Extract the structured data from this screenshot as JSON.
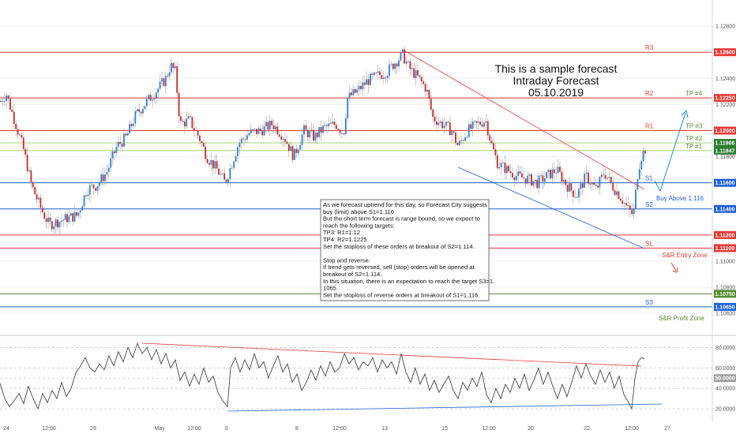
{
  "chart_data": {
    "type": "candlestick",
    "title_lines": [
      "This is a sample forecast",
      "Intraday Forecast",
      "05.10.2019"
    ],
    "price_axis": {
      "ylim": [
        1.1045,
        1.13
      ],
      "ticks": [
        "1.12800",
        "1.12600",
        "1.12400",
        "1.12200",
        "1.12000",
        "1.11800",
        "1.11600",
        "1.11400",
        "1.11200",
        "1.11000",
        "1.10800",
        "1.10600"
      ]
    },
    "levels": [
      {
        "label": "R3",
        "price": 1.126,
        "tag": "1.12600",
        "color": "#e53935",
        "tag_color": "#e53935"
      },
      {
        "label": "R2",
        "price": 1.1225,
        "tag": "1.12250",
        "color": "#e53935",
        "tag_color": "#e53935"
      },
      {
        "label": "R1",
        "price": 1.12,
        "tag": "1.12000",
        "color": "#e53935",
        "tag_color": "#e53935"
      },
      {
        "label": "TP #3",
        "price": 1.12,
        "tag": "",
        "color": "#558b2f",
        "tag_color": "#558b2f"
      },
      {
        "label": "TP #2",
        "price": 1.11906,
        "tag": "1.11906",
        "color": "#9ccc65",
        "tag_color": "#2e7d32"
      },
      {
        "label": "TP #1",
        "price": 1.11847,
        "tag": "1.11847",
        "color": "#9ccc65",
        "tag_color": "#2e7d32"
      },
      {
        "label": "TP #4",
        "price": 1.1225,
        "tag": "",
        "color": "#558b2f",
        "tag_color": "#558b2f"
      },
      {
        "label": "S1",
        "price": 1.116,
        "tag": "1.11600",
        "color": "#1e5fd8",
        "tag_color": "#1e5fd8"
      },
      {
        "label": "S2",
        "price": 1.114,
        "tag": "1.11400",
        "color": "#1e5fd8",
        "tag_color": "#1e5fd8"
      },
      {
        "label": "",
        "price": 1.112,
        "tag": "1.11200",
        "color": "#e53935",
        "tag_color": "#e53935"
      },
      {
        "label": "SL",
        "price": 1.111,
        "tag": "1.11100",
        "color": "#e53935",
        "tag_color": "#e53935"
      },
      {
        "label": "",
        "price": 1.1075,
        "tag": "1.10750",
        "color": "#558b2f",
        "tag_color": "#558b2f"
      },
      {
        "label": "S3",
        "price": 1.1065,
        "tag": "1.10650",
        "color": "#1e5fd8",
        "tag_color": "#1e5fd8"
      }
    ],
    "annotations": {
      "buy_above": "Buy Above 1.116",
      "entry_zone": "S&R Entry Zone",
      "profit_zone": "S&R Profit Zone"
    },
    "note_lines": [
      "As we forecast uptrend for this day, so Forecast City suggests",
      "buy (limit) above S1=1.116.",
      "But the short term forecast is range bound, so we expect to",
      "reach the following targets:",
      "TP3: R1=1.12",
      "TP4: R2=1.1225",
      "Set the stoploss of these orders at breakout of S2=1.114.",
      "",
      "Stop and reverse:",
      "If trend gets reversed, sell (stop) orders will be opened at",
      "breakout of S2=1.114.",
      "In this situation, there is an expectation to reach the target S3=1.",
      "1065.",
      "Set the stoploss of reverse orders at breakout of S1=1.116."
    ],
    "time_axis": [
      "24",
      "12:00",
      "29",
      "May",
      "12:00",
      "6",
      "8",
      "12:00",
      "13",
      "15",
      "12:00",
      "20",
      "22",
      "12:00",
      "27"
    ],
    "price_anchors": [
      [
        0,
        1.1222
      ],
      [
        8,
        1.1228
      ],
      [
        20,
        1.1205
      ],
      [
        30,
        1.1185
      ],
      [
        40,
        1.1158
      ],
      [
        52,
        1.114
      ],
      [
        62,
        1.1128
      ],
      [
        72,
        1.113
      ],
      [
        85,
        1.1133
      ],
      [
        98,
        1.1135
      ],
      [
        110,
        1.1155
      ],
      [
        122,
        1.1158
      ],
      [
        135,
        1.1168
      ],
      [
        148,
        1.1188
      ],
      [
        160,
        1.1195
      ],
      [
        172,
        1.1212
      ],
      [
        180,
        1.1218
      ],
      [
        190,
        1.1225
      ],
      [
        200,
        1.1232
      ],
      [
        210,
        1.124
      ],
      [
        216,
        1.125
      ],
      [
        222,
        1.1245
      ],
      [
        228,
        1.1205
      ],
      [
        240,
        1.1208
      ],
      [
        252,
        1.1195
      ],
      [
        262,
        1.118
      ],
      [
        275,
        1.117
      ],
      [
        285,
        1.116
      ],
      [
        292,
        1.1172
      ],
      [
        302,
        1.119
      ],
      [
        315,
        1.1198
      ],
      [
        330,
        1.12
      ],
      [
        345,
        1.1205
      ],
      [
        360,
        1.1195
      ],
      [
        372,
        1.118
      ],
      [
        385,
        1.12
      ],
      [
        398,
        1.1195
      ],
      [
        410,
        1.1202
      ],
      [
        425,
        1.1205
      ],
      [
        435,
        1.1198
      ],
      [
        440,
        1.1225
      ],
      [
        452,
        1.123
      ],
      [
        465,
        1.1238
      ],
      [
        478,
        1.1242
      ],
      [
        490,
        1.1245
      ],
      [
        500,
        1.1252
      ],
      [
        510,
        1.1258
      ],
      [
        518,
        1.1248
      ],
      [
        530,
        1.124
      ],
      [
        540,
        1.1232
      ],
      [
        548,
        1.121
      ],
      [
        560,
        1.1205
      ],
      [
        572,
        1.12
      ],
      [
        580,
        1.1188
      ],
      [
        592,
        1.12
      ],
      [
        605,
        1.1205
      ],
      [
        615,
        1.1208
      ],
      [
        622,
        1.119
      ],
      [
        630,
        1.1175
      ],
      [
        642,
        1.117
      ],
      [
        655,
        1.1165
      ],
      [
        668,
        1.1163
      ],
      [
        680,
        1.116
      ],
      [
        692,
        1.1165
      ],
      [
        705,
        1.117
      ],
      [
        718,
        1.1158
      ],
      [
        730,
        1.115
      ],
      [
        742,
        1.1165
      ],
      [
        755,
        1.1155
      ],
      [
        765,
        1.1168
      ],
      [
        775,
        1.1158
      ],
      [
        785,
        1.115
      ],
      [
        795,
        1.114
      ],
      [
        802,
        1.1135
      ],
      [
        808,
        1.117
      ],
      [
        812,
        1.118
      ],
      [
        818,
        1.1187
      ]
    ],
    "rsi": {
      "ticks": [
        "80.0000",
        "60.0000",
        "50.0000",
        "40.0000",
        "20.0000"
      ],
      "current_tag": "50.0000",
      "ylim": [
        10,
        88
      ],
      "values": [
        [
          0,
          45
        ],
        [
          6,
          30
        ],
        [
          12,
          22
        ],
        [
          18,
          28
        ],
        [
          24,
          35
        ],
        [
          30,
          25
        ],
        [
          36,
          42
        ],
        [
          42,
          30
        ],
        [
          48,
          20
        ],
        [
          54,
          35
        ],
        [
          60,
          26
        ],
        [
          66,
          38
        ],
        [
          72,
          30
        ],
        [
          78,
          46
        ],
        [
          84,
          32
        ],
        [
          90,
          40
        ],
        [
          96,
          55
        ],
        [
          102,
          62
        ],
        [
          108,
          70
        ],
        [
          114,
          60
        ],
        [
          120,
          56
        ],
        [
          126,
          64
        ],
        [
          132,
          58
        ],
        [
          138,
          72
        ],
        [
          144,
          62
        ],
        [
          150,
          76
        ],
        [
          156,
          66
        ],
        [
          162,
          80
        ],
        [
          168,
          70
        ],
        [
          174,
          84
        ],
        [
          180,
          74
        ],
        [
          186,
          80
        ],
        [
          192,
          68
        ],
        [
          198,
          78
        ],
        [
          204,
          64
        ],
        [
          210,
          74
        ],
        [
          216,
          60
        ],
        [
          222,
          68
        ],
        [
          228,
          48
        ],
        [
          234,
          56
        ],
        [
          240,
          42
        ],
        [
          246,
          54
        ],
        [
          252,
          44
        ],
        [
          258,
          60
        ],
        [
          264,
          46
        ],
        [
          270,
          52
        ],
        [
          276,
          36
        ],
        [
          282,
          28
        ],
        [
          288,
          22
        ],
        [
          292,
          60
        ],
        [
          298,
          70
        ],
        [
          304,
          56
        ],
        [
          310,
          68
        ],
        [
          316,
          58
        ],
        [
          322,
          74
        ],
        [
          328,
          60
        ],
        [
          334,
          66
        ],
        [
          340,
          50
        ],
        [
          346,
          62
        ],
        [
          352,
          72
        ],
        [
          358,
          56
        ],
        [
          364,
          64
        ],
        [
          370,
          46
        ],
        [
          376,
          54
        ],
        [
          382,
          38
        ],
        [
          388,
          46
        ],
        [
          394,
          58
        ],
        [
          400,
          48
        ],
        [
          406,
          62
        ],
        [
          412,
          52
        ],
        [
          418,
          66
        ],
        [
          424,
          56
        ],
        [
          430,
          60
        ],
        [
          436,
          74
        ],
        [
          442,
          64
        ],
        [
          448,
          70
        ],
        [
          454,
          58
        ],
        [
          460,
          66
        ],
        [
          466,
          62
        ],
        [
          472,
          70
        ],
        [
          478,
          56
        ],
        [
          484,
          68
        ],
        [
          490,
          60
        ],
        [
          496,
          66
        ],
        [
          502,
          54
        ],
        [
          508,
          74
        ],
        [
          514,
          56
        ],
        [
          520,
          46
        ],
        [
          526,
          60
        ],
        [
          532,
          44
        ],
        [
          538,
          54
        ],
        [
          544,
          38
        ],
        [
          550,
          48
        ],
        [
          556,
          36
        ],
        [
          562,
          44
        ],
        [
          568,
          52
        ],
        [
          574,
          38
        ],
        [
          580,
          30
        ],
        [
          586,
          46
        ],
        [
          592,
          38
        ],
        [
          598,
          50
        ],
        [
          604,
          42
        ],
        [
          610,
          56
        ],
        [
          616,
          34
        ],
        [
          622,
          26
        ],
        [
          628,
          40
        ],
        [
          634,
          30
        ],
        [
          640,
          44
        ],
        [
          646,
          36
        ],
        [
          652,
          50
        ],
        [
          658,
          40
        ],
        [
          664,
          54
        ],
        [
          670,
          38
        ],
        [
          676,
          48
        ],
        [
          682,
          60
        ],
        [
          688,
          44
        ],
        [
          694,
          56
        ],
        [
          700,
          42
        ],
        [
          706,
          30
        ],
        [
          712,
          44
        ],
        [
          718,
          32
        ],
        [
          724,
          46
        ],
        [
          730,
          62
        ],
        [
          736,
          50
        ],
        [
          742,
          64
        ],
        [
          748,
          52
        ],
        [
          754,
          44
        ],
        [
          760,
          58
        ],
        [
          766,
          46
        ],
        [
          772,
          56
        ],
        [
          778,
          40
        ],
        [
          784,
          52
        ],
        [
          790,
          34
        ],
        [
          796,
          26
        ],
        [
          800,
          20
        ],
        [
          804,
          50
        ],
        [
          808,
          66
        ],
        [
          812,
          70
        ],
        [
          816,
          69
        ]
      ]
    }
  }
}
